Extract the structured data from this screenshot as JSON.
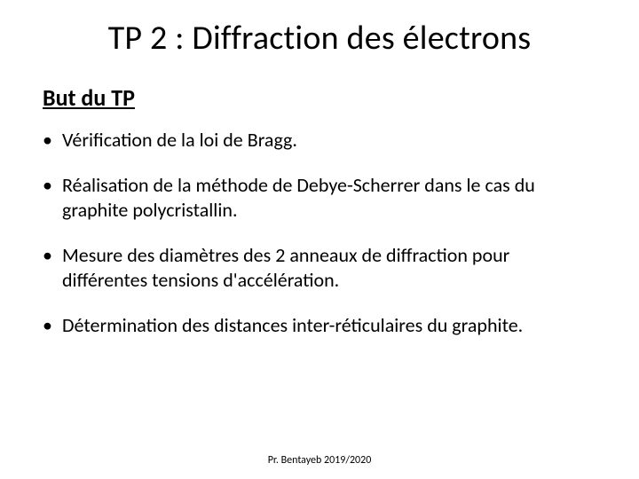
{
  "title": "TP 2 : Diffraction des électrons",
  "subtitle": "But du TP",
  "bullets": [
    "Vérification de la loi de Bragg.",
    "Réalisation de la méthode de Debye-Scherrer dans le cas du graphite polycristallin.",
    "Mesure des diamètres des 2 anneaux de diffraction pour différentes tensions d'accélération.",
    "Détermination des distances inter-réticulaires du graphite."
  ],
  "footer": "Pr. Bentayeb  2019/2020",
  "colors": {
    "background": "#ffffff",
    "text": "#000000"
  },
  "fonts": {
    "title_size_pt": 38,
    "subtitle_size_pt": 26,
    "body_size_pt": 22,
    "footer_size_pt": 12
  }
}
